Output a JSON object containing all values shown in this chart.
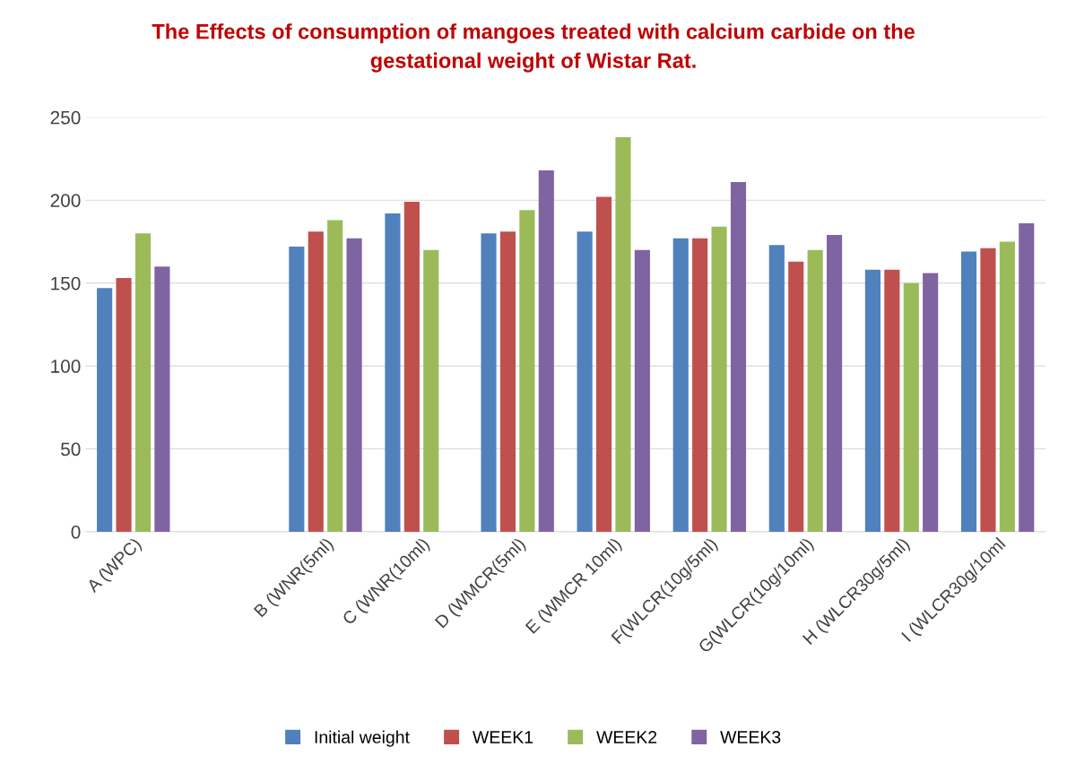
{
  "chart_data": {
    "type": "bar",
    "title": "The Effects of consumption of mangoes treated with calcium carbide on the\ngestational weight of Wistar Rat.",
    "categories": [
      "A (WPC)",
      null,
      "B (WNR(5ml)",
      "C (WNR(10ml)",
      "D (WMCR(5ml)",
      "E (WMCR 10ml)",
      "F(WLCR(10g/5ml)",
      "G(WLCR(10g/10ml)",
      "H (WLCR30g/5ml)",
      "I (WLCR30g/10ml"
    ],
    "series": [
      {
        "name": "Initial weight",
        "color": "#4f81bd",
        "values": [
          147,
          null,
          172,
          192,
          180,
          181,
          177,
          173,
          158,
          169
        ]
      },
      {
        "name": "WEEK1",
        "color": "#c0504d",
        "values": [
          153,
          null,
          181,
          199,
          181,
          202,
          177,
          163,
          158,
          171
        ]
      },
      {
        "name": "WEEK2",
        "color": "#9bbb59",
        "values": [
          180,
          null,
          188,
          170,
          194,
          238,
          184,
          170,
          150,
          175
        ]
      },
      {
        "name": "WEEK3",
        "color": "#8064a2",
        "values": [
          160,
          null,
          177,
          null,
          218,
          170,
          211,
          179,
          156,
          186
        ]
      }
    ],
    "ylim": [
      0,
      250
    ],
    "yticks": [
      0,
      50,
      100,
      150,
      200,
      250
    ],
    "grid": "y",
    "legend": "bottom"
  }
}
